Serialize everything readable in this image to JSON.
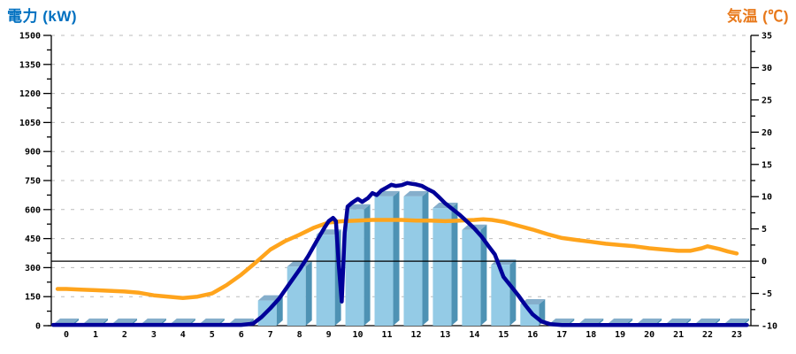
{
  "header": {
    "left_title": "電力 (kW)",
    "right_title": "気温 (℃)"
  },
  "colors": {
    "power_title": "#0070C0",
    "temp_title": "#E8791B",
    "bar_front": "#94CBE6",
    "bar_top": "#85AECB",
    "bar_side": "#4E92B4",
    "power_line": "#000099",
    "temp_line": "#FFA41C",
    "grid": "#BBBBBB",
    "axis": "#000000",
    "zero_line": "#000000",
    "background": "#FFFFFF"
  },
  "chart_data": {
    "type": "combo-bar-line",
    "legend": "none",
    "grid": "horizontal-dashed",
    "categories": [
      0,
      1,
      2,
      3,
      4,
      5,
      6,
      7,
      8,
      9,
      10,
      11,
      12,
      13,
      14,
      15,
      16,
      17,
      18,
      19,
      20,
      21,
      22,
      23
    ],
    "left_axis": {
      "title": "電力 (kW)",
      "min": 0,
      "max": 1500,
      "major_tick": 150,
      "minor_tick": 75
    },
    "right_axis": {
      "title": "気温 (℃)",
      "min": -10,
      "max": 35,
      "major_tick": 5,
      "minor_tick": 2.5
    },
    "reference_line": {
      "axis": "right",
      "value": 0
    },
    "series": [
      {
        "name": "power-bars",
        "type": "bar",
        "axis": "left",
        "unit": "kW",
        "values": [
          10,
          10,
          10,
          10,
          10,
          10,
          10,
          130,
          305,
          470,
          600,
          668,
          668,
          608,
          495,
          315,
          110,
          10,
          10,
          10,
          10,
          10,
          10,
          10
        ]
      },
      {
        "name": "power-line",
        "type": "line",
        "axis": "left",
        "unit": "kW",
        "points": [
          [
            -0.45,
            4
          ],
          [
            0,
            4
          ],
          [
            1,
            4
          ],
          [
            2,
            4
          ],
          [
            3,
            4
          ],
          [
            4,
            4
          ],
          [
            5,
            4
          ],
          [
            6,
            4
          ],
          [
            6.4,
            10
          ],
          [
            6.7,
            45
          ],
          [
            7,
            90
          ],
          [
            7.3,
            140
          ],
          [
            7.6,
            205
          ],
          [
            8,
            290
          ],
          [
            8.3,
            360
          ],
          [
            8.6,
            440
          ],
          [
            8.85,
            505
          ],
          [
            9,
            540
          ],
          [
            9.15,
            557
          ],
          [
            9.25,
            540
          ],
          [
            9.35,
            310
          ],
          [
            9.45,
            125
          ],
          [
            9.55,
            480
          ],
          [
            9.65,
            615
          ],
          [
            9.8,
            635
          ],
          [
            10,
            655
          ],
          [
            10.15,
            640
          ],
          [
            10.35,
            660
          ],
          [
            10.5,
            685
          ],
          [
            10.65,
            675
          ],
          [
            10.8,
            698
          ],
          [
            11,
            715
          ],
          [
            11.15,
            728
          ],
          [
            11.3,
            722
          ],
          [
            11.5,
            726
          ],
          [
            11.7,
            737
          ],
          [
            11.85,
            733
          ],
          [
            12,
            730
          ],
          [
            12.2,
            722
          ],
          [
            12.4,
            705
          ],
          [
            12.6,
            690
          ],
          [
            12.8,
            662
          ],
          [
            13,
            632
          ],
          [
            13.25,
            602
          ],
          [
            13.5,
            572
          ],
          [
            13.75,
            538
          ],
          [
            14,
            502
          ],
          [
            14.25,
            460
          ],
          [
            14.5,
            408
          ],
          [
            14.7,
            368
          ],
          [
            14.85,
            310
          ],
          [
            15,
            252
          ],
          [
            15.25,
            205
          ],
          [
            15.5,
            158
          ],
          [
            15.75,
            105
          ],
          [
            16,
            58
          ],
          [
            16.3,
            22
          ],
          [
            16.6,
            8
          ],
          [
            17,
            3
          ],
          [
            18,
            3
          ],
          [
            19,
            3
          ],
          [
            20,
            3
          ],
          [
            21,
            3
          ],
          [
            22,
            3
          ],
          [
            23,
            3
          ],
          [
            23.35,
            3
          ]
        ]
      },
      {
        "name": "temperature-line",
        "type": "line",
        "axis": "right",
        "unit": "°C",
        "points": [
          [
            -0.3,
            -4.3
          ],
          [
            0,
            -4.3
          ],
          [
            0.5,
            -4.4
          ],
          [
            1,
            -4.5
          ],
          [
            1.5,
            -4.6
          ],
          [
            2,
            -4.7
          ],
          [
            2.5,
            -4.9
          ],
          [
            3,
            -5.3
          ],
          [
            3.5,
            -5.5
          ],
          [
            4,
            -5.7
          ],
          [
            4.5,
            -5.5
          ],
          [
            5,
            -5.0
          ],
          [
            5.5,
            -3.7
          ],
          [
            6,
            -2.1
          ],
          [
            6.5,
            -0.2
          ],
          [
            7,
            1.8
          ],
          [
            7.5,
            3.1
          ],
          [
            8,
            4.1
          ],
          [
            8.5,
            5.2
          ],
          [
            9,
            6.0
          ],
          [
            9.5,
            6.2
          ],
          [
            10,
            6.3
          ],
          [
            10.5,
            6.4
          ],
          [
            11,
            6.4
          ],
          [
            11.5,
            6.4
          ],
          [
            12,
            6.3
          ],
          [
            12.5,
            6.3
          ],
          [
            13,
            6.2
          ],
          [
            13.5,
            6.3
          ],
          [
            14,
            6.4
          ],
          [
            14.3,
            6.5
          ],
          [
            14.6,
            6.4
          ],
          [
            15,
            6.1
          ],
          [
            15.5,
            5.5
          ],
          [
            16,
            4.9
          ],
          [
            16.5,
            4.2
          ],
          [
            17,
            3.6
          ],
          [
            17.5,
            3.3
          ],
          [
            18,
            3.0
          ],
          [
            18.5,
            2.7
          ],
          [
            19,
            2.5
          ],
          [
            19.5,
            2.3
          ],
          [
            20,
            2.0
          ],
          [
            20.5,
            1.8
          ],
          [
            21,
            1.6
          ],
          [
            21.4,
            1.6
          ],
          [
            21.8,
            2.0
          ],
          [
            22,
            2.3
          ],
          [
            22.4,
            1.9
          ],
          [
            22.7,
            1.5
          ],
          [
            23,
            1.2
          ]
        ]
      }
    ]
  }
}
